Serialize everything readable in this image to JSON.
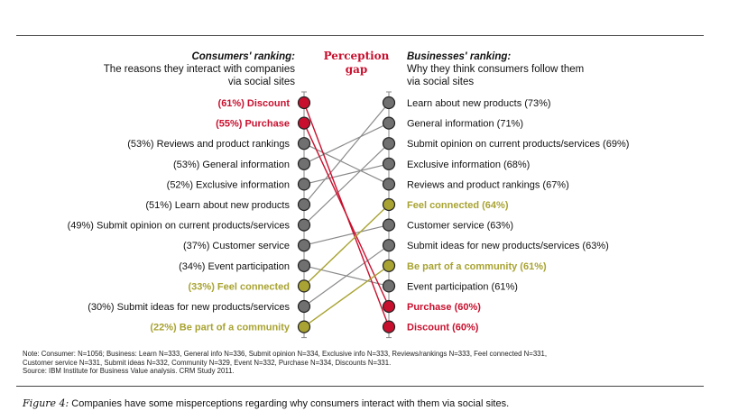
{
  "header": {
    "left_title": "Consumers' ranking:",
    "left_sub1": "The reasons they interact with companies",
    "left_sub2": "via social sites",
    "gap_line1": "Perception",
    "gap_line2": "gap",
    "right_title": "Businesses' ranking:",
    "right_sub1": "Why they think consumers follow them",
    "right_sub2": "via social sites"
  },
  "colors": {
    "red": "#c8102e",
    "olive": "#a8a332",
    "gray": "#707070"
  },
  "chart_data": {
    "type": "slope",
    "consumers": [
      {
        "label": "(61%) Discount",
        "item": "Discount",
        "value": 61,
        "highlight": "red"
      },
      {
        "label": "(55%) Purchase",
        "item": "Purchase",
        "value": 55,
        "highlight": "red"
      },
      {
        "label": "(53%) Reviews and product rankings",
        "item": "Reviews and product rankings",
        "value": 53,
        "highlight": "none"
      },
      {
        "label": "(53%) General information",
        "item": "General information",
        "value": 53,
        "highlight": "none"
      },
      {
        "label": "(52%) Exclusive information",
        "item": "Exclusive information",
        "value": 52,
        "highlight": "none"
      },
      {
        "label": "(51%) Learn about new products",
        "item": "Learn about new products",
        "value": 51,
        "highlight": "none"
      },
      {
        "label": "(49%) Submit opinion on current products/services",
        "item": "Submit opinion on current products/services",
        "value": 49,
        "highlight": "none"
      },
      {
        "label": "(37%) Customer service",
        "item": "Customer service",
        "value": 37,
        "highlight": "none"
      },
      {
        "label": "(34%) Event participation",
        "item": "Event participation",
        "value": 34,
        "highlight": "none"
      },
      {
        "label": "(33%) Feel connected",
        "item": "Feel connected",
        "value": 33,
        "highlight": "olive"
      },
      {
        "label": "(30%) Submit ideas for new products/services",
        "item": "Submit ideas for new products/services",
        "value": 30,
        "highlight": "none"
      },
      {
        "label": "(22%) Be part of a community",
        "item": "Be part of a community",
        "value": 22,
        "highlight": "olive"
      }
    ],
    "businesses": [
      {
        "label": "Learn about new products (73%)",
        "item": "Learn about new products",
        "value": 73,
        "highlight": "none"
      },
      {
        "label": "General information (71%)",
        "item": "General information",
        "value": 71,
        "highlight": "none"
      },
      {
        "label": "Submit opinion on current products/services (69%)",
        "item": "Submit opinion on current products/services",
        "value": 69,
        "highlight": "none"
      },
      {
        "label": "Exclusive information (68%)",
        "item": "Exclusive information",
        "value": 68,
        "highlight": "none"
      },
      {
        "label": "Reviews and product rankings (67%)",
        "item": "Reviews and product rankings",
        "value": 67,
        "highlight": "none"
      },
      {
        "label": "Feel connected (64%)",
        "item": "Feel connected",
        "value": 64,
        "highlight": "olive"
      },
      {
        "label": "Customer service (63%)",
        "item": "Customer service",
        "value": 63,
        "highlight": "none"
      },
      {
        "label": "Submit ideas for new products/services (63%)",
        "item": "Submit ideas for new products/services",
        "value": 63,
        "highlight": "none"
      },
      {
        "label": "Be part of a community (61%)",
        "item": "Be part of a community",
        "value": 61,
        "highlight": "olive"
      },
      {
        "label": "Event participation (61%)",
        "item": "Event participation",
        "value": 61,
        "highlight": "none"
      },
      {
        "label": "Purchase (60%)",
        "item": "Purchase",
        "value": 60,
        "highlight": "red"
      },
      {
        "label": "Discount (60%)",
        "item": "Discount",
        "value": 60,
        "highlight": "red"
      }
    ]
  },
  "note": {
    "line1": "Note: Consumer: N=1056; Business: Learn N=333, General info N=336, Submit opinion N=334, Exclusive info N=333, Reviews/rankings N=333, Feel connected N=331,",
    "line2": "Customer service N=331, Submit ideas N=332, Community N=329, Event N=332, Purchase N=334, Discounts N=331.",
    "line3": "Source: IBM Institute for Business Value analysis. CRM Study 2011."
  },
  "caption": {
    "figure": "Figure 4:",
    "text": " Companies have some misperceptions regarding why consumers interact with them via social sites."
  }
}
